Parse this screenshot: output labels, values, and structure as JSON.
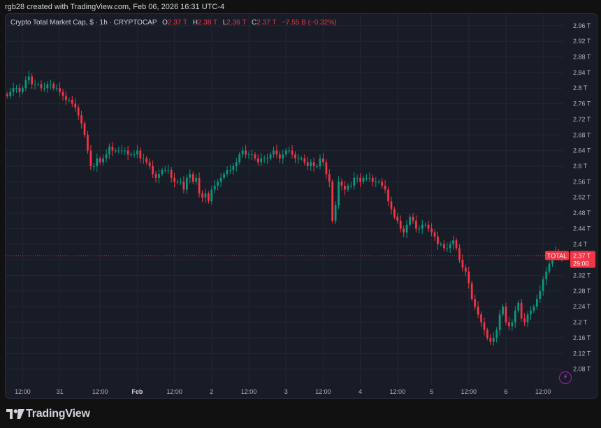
{
  "header": {
    "caption": "rgb28 created with TradingView.com, Feb 06, 2026 16:31 UTC-4"
  },
  "legend": {
    "symbol": "Crypto Total Market Cap, $ · 1h · CRYPTOCAP",
    "o_label": "O",
    "o_value": "2.37 T",
    "h_label": "H",
    "h_value": "2.38 T",
    "l_label": "L",
    "l_value": "2.36 T",
    "c_label": "C",
    "c_value": "2.37 T",
    "change": "−7.55 B (−0.32%)"
  },
  "price_label": {
    "symbol": "TOTAL",
    "price": "2.37 T",
    "countdown": "29:00"
  },
  "footer": {
    "brand": "TradingView"
  },
  "colors": {
    "up": "#089981",
    "down": "#f23645",
    "background": "#181c27",
    "grid": "#242733"
  },
  "icons": {
    "lightning": "lightning-icon",
    "logo": "tradingview-logo-icon"
  },
  "chart_data": {
    "type": "candlestick",
    "unit": "T",
    "y_ticks": [
      2.08,
      2.12,
      2.16,
      2.2,
      2.24,
      2.28,
      2.32,
      2.36,
      2.4,
      2.44,
      2.48,
      2.52,
      2.56,
      2.6,
      2.64,
      2.68,
      2.72,
      2.76,
      2.8,
      2.84,
      2.88,
      2.92,
      2.96
    ],
    "y_tick_labels": [
      "2.08 T",
      "2.12 T",
      "2.16 T",
      "2.2 T",
      "2.24 T",
      "2.28 T",
      "2.32 T",
      "2.36 T",
      "2.4 T",
      "2.44 T",
      "2.48 T",
      "2.52 T",
      "2.56 T",
      "2.6 T",
      "2.64 T",
      "2.68 T",
      "2.72 T",
      "2.76 T",
      "2.8 T",
      "2.84 T",
      "2.88 T",
      "2.92 T",
      "2.96 T"
    ],
    "ylim": [
      2.04,
      2.99
    ],
    "x_ticks": [
      {
        "label": "12:00",
        "bold": false
      },
      {
        "label": "31",
        "bold": false
      },
      {
        "label": "12:00",
        "bold": false
      },
      {
        "label": "Feb",
        "bold": true
      },
      {
        "label": "12:00",
        "bold": false
      },
      {
        "label": "2",
        "bold": false
      },
      {
        "label": "12:00",
        "bold": false
      },
      {
        "label": "3",
        "bold": false
      },
      {
        "label": "12:00",
        "bold": false
      },
      {
        "label": "4",
        "bold": false
      },
      {
        "label": "12:00",
        "bold": false
      },
      {
        "label": "5",
        "bold": false
      },
      {
        "label": "12:00",
        "bold": false
      },
      {
        "label": "6",
        "bold": false
      },
      {
        "label": "12:00",
        "bold": false
      }
    ],
    "x_tick_candle_index": [
      5,
      17,
      30,
      42,
      54,
      66,
      78,
      90,
      102,
      114,
      126,
      137,
      149,
      161,
      173
    ],
    "last_price": 2.37,
    "closes": [
      2.78,
      2.79,
      2.8,
      2.8,
      2.79,
      2.8,
      2.82,
      2.83,
      2.81,
      2.81,
      2.81,
      2.8,
      2.8,
      2.81,
      2.81,
      2.8,
      2.8,
      2.79,
      2.78,
      2.77,
      2.77,
      2.76,
      2.75,
      2.73,
      2.71,
      2.68,
      2.64,
      2.6,
      2.6,
      2.62,
      2.61,
      2.62,
      2.63,
      2.65,
      2.64,
      2.64,
      2.64,
      2.64,
      2.64,
      2.63,
      2.63,
      2.63,
      2.64,
      2.62,
      2.62,
      2.61,
      2.6,
      2.58,
      2.57,
      2.58,
      2.59,
      2.59,
      2.59,
      2.57,
      2.56,
      2.56,
      2.56,
      2.54,
      2.57,
      2.58,
      2.56,
      2.57,
      2.53,
      2.52,
      2.53,
      2.51,
      2.54,
      2.55,
      2.56,
      2.57,
      2.58,
      2.59,
      2.59,
      2.6,
      2.61,
      2.63,
      2.64,
      2.63,
      2.63,
      2.63,
      2.62,
      2.61,
      2.62,
      2.62,
      2.62,
      2.63,
      2.64,
      2.63,
      2.62,
      2.63,
      2.64,
      2.64,
      2.63,
      2.62,
      2.62,
      2.62,
      2.61,
      2.6,
      2.61,
      2.6,
      2.6,
      2.62,
      2.61,
      2.58,
      2.56,
      2.46,
      2.5,
      2.56,
      2.55,
      2.54,
      2.55,
      2.55,
      2.57,
      2.57,
      2.56,
      2.57,
      2.57,
      2.57,
      2.56,
      2.56,
      2.56,
      2.55,
      2.54,
      2.51,
      2.49,
      2.47,
      2.46,
      2.44,
      2.43,
      2.45,
      2.47,
      2.46,
      2.44,
      2.44,
      2.45,
      2.45,
      2.44,
      2.43,
      2.42,
      2.4,
      2.4,
      2.39,
      2.39,
      2.4,
      2.41,
      2.39,
      2.36,
      2.34,
      2.33,
      2.3,
      2.26,
      2.24,
      2.22,
      2.2,
      2.18,
      2.16,
      2.15,
      2.16,
      2.18,
      2.22,
      2.24,
      2.2,
      2.19,
      2.2,
      2.23,
      2.25,
      2.21,
      2.2,
      2.22,
      2.23,
      2.24,
      2.26,
      2.28,
      2.31,
      2.33,
      2.35,
      2.37,
      2.38,
      2.37,
      2.37
    ]
  }
}
